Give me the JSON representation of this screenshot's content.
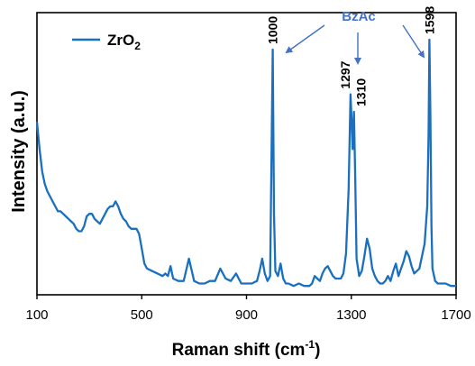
{
  "chart_data": {
    "type": "line",
    "title": "",
    "xlabel": "Raman shift (cm⁻¹)",
    "ylabel": "Intensity (a.u.)",
    "xlim": [
      100,
      1700
    ],
    "ylim": [
      0,
      1
    ],
    "xticks": [
      "100",
      "500",
      "900",
      "1300",
      "1700"
    ],
    "legend": {
      "position": "top-left"
    },
    "series": [
      {
        "name": "ZrO₂",
        "color": "#1a6fbf",
        "x": [
          100,
          110,
          120,
          130,
          140,
          150,
          160,
          170,
          180,
          190,
          200,
          210,
          220,
          230,
          240,
          250,
          260,
          270,
          280,
          290,
          300,
          310,
          320,
          330,
          340,
          350,
          360,
          370,
          380,
          390,
          400,
          410,
          420,
          430,
          440,
          450,
          460,
          470,
          480,
          490,
          500,
          510,
          520,
          540,
          560,
          580,
          590,
          600,
          610,
          620,
          640,
          660,
          680,
          700,
          720,
          740,
          760,
          780,
          800,
          820,
          840,
          860,
          880,
          900,
          920,
          940,
          950,
          960,
          970,
          980,
          990,
          1000,
          1005,
          1010,
          1020,
          1030,
          1040,
          1050,
          1060,
          1080,
          1100,
          1120,
          1140,
          1150,
          1160,
          1170,
          1180,
          1190,
          1200,
          1210,
          1220,
          1230,
          1240,
          1250,
          1260,
          1270,
          1280,
          1290,
          1297,
          1302,
          1305,
          1310,
          1315,
          1320,
          1330,
          1340,
          1350,
          1360,
          1370,
          1380,
          1390,
          1400,
          1410,
          1420,
          1430,
          1440,
          1450,
          1460,
          1470,
          1480,
          1490,
          1500,
          1510,
          1520,
          1530,
          1540,
          1550,
          1560,
          1570,
          1580,
          1590,
          1595,
          1598,
          1602,
          1606,
          1610,
          1620,
          1630,
          1640,
          1660,
          1680,
          1700
        ],
        "y": [
          0.67,
          0.56,
          0.47,
          0.42,
          0.39,
          0.37,
          0.35,
          0.33,
          0.31,
          0.31,
          0.3,
          0.29,
          0.28,
          0.27,
          0.26,
          0.24,
          0.23,
          0.23,
          0.25,
          0.29,
          0.3,
          0.3,
          0.28,
          0.27,
          0.26,
          0.28,
          0.3,
          0.32,
          0.33,
          0.33,
          0.35,
          0.33,
          0.3,
          0.28,
          0.27,
          0.25,
          0.24,
          0.24,
          0.24,
          0.22,
          0.16,
          0.1,
          0.08,
          0.07,
          0.06,
          0.05,
          0.06,
          0.05,
          0.09,
          0.04,
          0.03,
          0.03,
          0.12,
          0.03,
          0.02,
          0.02,
          0.03,
          0.03,
          0.08,
          0.04,
          0.03,
          0.06,
          0.02,
          0.02,
          0.02,
          0.03,
          0.07,
          0.12,
          0.06,
          0.03,
          0.05,
          0.96,
          0.3,
          0.07,
          0.05,
          0.1,
          0.04,
          0.02,
          0.02,
          0.01,
          0.02,
          0.01,
          0.01,
          0.02,
          0.05,
          0.04,
          0.03,
          0.06,
          0.08,
          0.09,
          0.07,
          0.05,
          0.04,
          0.04,
          0.04,
          0.06,
          0.14,
          0.4,
          0.78,
          0.66,
          0.56,
          0.71,
          0.45,
          0.12,
          0.05,
          0.07,
          0.13,
          0.2,
          0.16,
          0.08,
          0.05,
          0.03,
          0.02,
          0.02,
          0.03,
          0.05,
          0.03,
          0.07,
          0.1,
          0.05,
          0.08,
          0.11,
          0.15,
          0.13,
          0.09,
          0.06,
          0.07,
          0.08,
          0.13,
          0.18,
          0.33,
          0.62,
          1.0,
          0.7,
          0.25,
          0.08,
          0.03,
          0.02,
          0.02,
          0.02,
          0.01,
          0.01
        ]
      }
    ],
    "peak_labels": [
      {
        "x": 1000,
        "y": 0.96,
        "label": "1000"
      },
      {
        "x": 1297,
        "y": 0.78,
        "label": "1297"
      },
      {
        "x": 1310,
        "y": 0.71,
        "label": "1310"
      },
      {
        "x": 1598,
        "y": 1.0,
        "label": "1598"
      }
    ],
    "annotation": {
      "text": "BzAc",
      "color": "#4472c4",
      "arrow_targets": [
        1000,
        1310,
        1598
      ]
    }
  }
}
